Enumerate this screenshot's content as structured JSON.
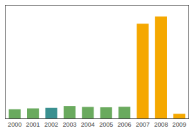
{
  "chart_data": {
    "type": "bar",
    "categories": [
      "2000",
      "2001",
      "2002",
      "2003",
      "2004",
      "2005",
      "2006",
      "2007",
      "2008",
      "2009"
    ],
    "values": [
      5,
      5.5,
      5.8,
      6.8,
      6.3,
      6.1,
      6.4,
      52,
      56,
      2.5
    ],
    "colors": [
      "#6aaa5e",
      "#6aaa5e",
      "#3a9090",
      "#6aaa5e",
      "#6aaa5e",
      "#6aaa5e",
      "#6aaa5e",
      "#f5a800",
      "#f5a800",
      "#f5a800"
    ],
    "ylim": [
      0,
      62
    ],
    "yticks": [],
    "grid": false,
    "tick_labels": "x"
  }
}
